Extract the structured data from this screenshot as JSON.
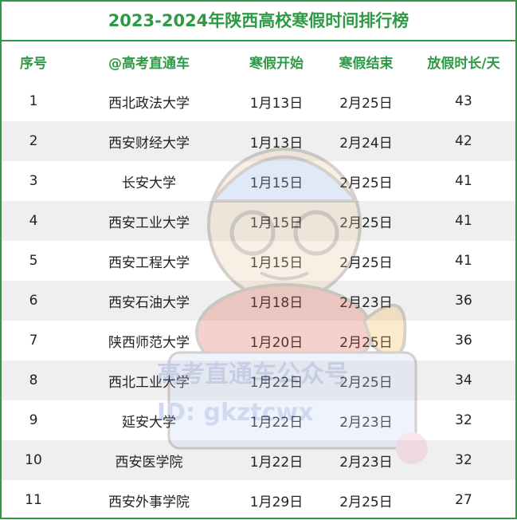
{
  "title": "2023-2024年陕西高校寒假时间排行榜",
  "headers": [
    "序号",
    "@高考直通车",
    "寒假开始",
    "寒假结束",
    "放假时长/天"
  ],
  "rows": [
    [
      "1",
      "西北政法大学",
      "1月13日",
      "2月25日",
      "43"
    ],
    [
      "2",
      "西安财经大学",
      "1月13日",
      "2月24日",
      "42"
    ],
    [
      "3",
      "长安大学",
      "1月15日",
      "2月25日",
      "41"
    ],
    [
      "4",
      "西安工业大学",
      "1月15日",
      "2月25日",
      "41"
    ],
    [
      "5",
      "西安工程大学",
      "1月15日",
      "2月25日",
      "41"
    ],
    [
      "6",
      "西安石油大学",
      "1月18日",
      "2月23日",
      "36"
    ],
    [
      "7",
      "陕西师范大学",
      "1月20日",
      "2月25日",
      "36"
    ],
    [
      "8",
      "西北工业大学",
      "1月22日",
      "2月25日",
      "34"
    ],
    [
      "9",
      "延安大学",
      "1月22日",
      "2月23日",
      "32"
    ],
    [
      "10",
      "西安医学院",
      "1月22日",
      "2月23日",
      "32"
    ],
    [
      "11",
      "西安外事学院",
      "1月29日",
      "2月25日",
      "27"
    ]
  ],
  "watermark": {
    "line1": "高考直通车公众号",
    "line2": "ID: gkztcwx"
  },
  "colors": {
    "accent": "#2f9a45",
    "stripe": "#efefef",
    "watermark": "#5b7bc8"
  }
}
